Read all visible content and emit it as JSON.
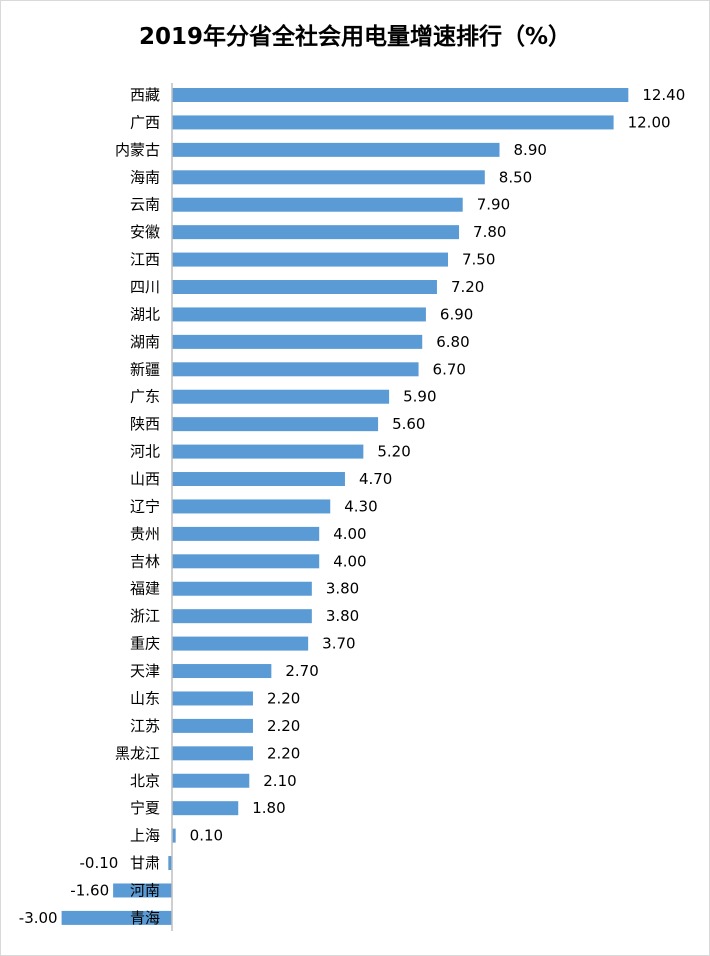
{
  "chart_data": {
    "type": "bar",
    "orientation": "horizontal",
    "title": "2019年分省全社会用电量增速排行（%）",
    "categories": [
      "西藏",
      "广西",
      "内蒙古",
      "海南",
      "云南",
      "安徽",
      "江西",
      "四川",
      "湖北",
      "湖南",
      "新疆",
      "广东",
      "陕西",
      "河北",
      "山西",
      "辽宁",
      "贵州",
      "吉林",
      "福建",
      "浙江",
      "重庆",
      "天津",
      "山东",
      "江苏",
      "黑龙江",
      "北京",
      "宁夏",
      "上海",
      "甘肃",
      "河南",
      "青海"
    ],
    "values": [
      12.4,
      12.0,
      8.9,
      8.5,
      7.9,
      7.8,
      7.5,
      7.2,
      6.9,
      6.8,
      6.7,
      5.9,
      5.6,
      5.2,
      4.7,
      4.3,
      4.0,
      4.0,
      3.8,
      3.8,
      3.7,
      2.7,
      2.2,
      2.2,
      2.2,
      2.1,
      1.8,
      0.1,
      -0.1,
      -1.6,
      -3.0
    ],
    "data_labels": [
      "12.40",
      "12.00",
      "8.90",
      "8.50",
      "7.90",
      "7.80",
      "7.50",
      "7.20",
      "6.90",
      "6.80",
      "6.70",
      "5.90",
      "5.60",
      "5.20",
      "4.70",
      "4.30",
      "4.00",
      "4.00",
      "3.80",
      "3.80",
      "3.70",
      "2.70",
      "2.20",
      "2.20",
      "2.20",
      "2.10",
      "1.80",
      "0.10",
      "-0.10",
      "-1.60",
      "-3.00"
    ],
    "xlim": [
      -3.0,
      12.4
    ],
    "grid": false,
    "legend": "none",
    "bar_color": "#5b9bd5",
    "axis_color": "#bfbfbf"
  }
}
